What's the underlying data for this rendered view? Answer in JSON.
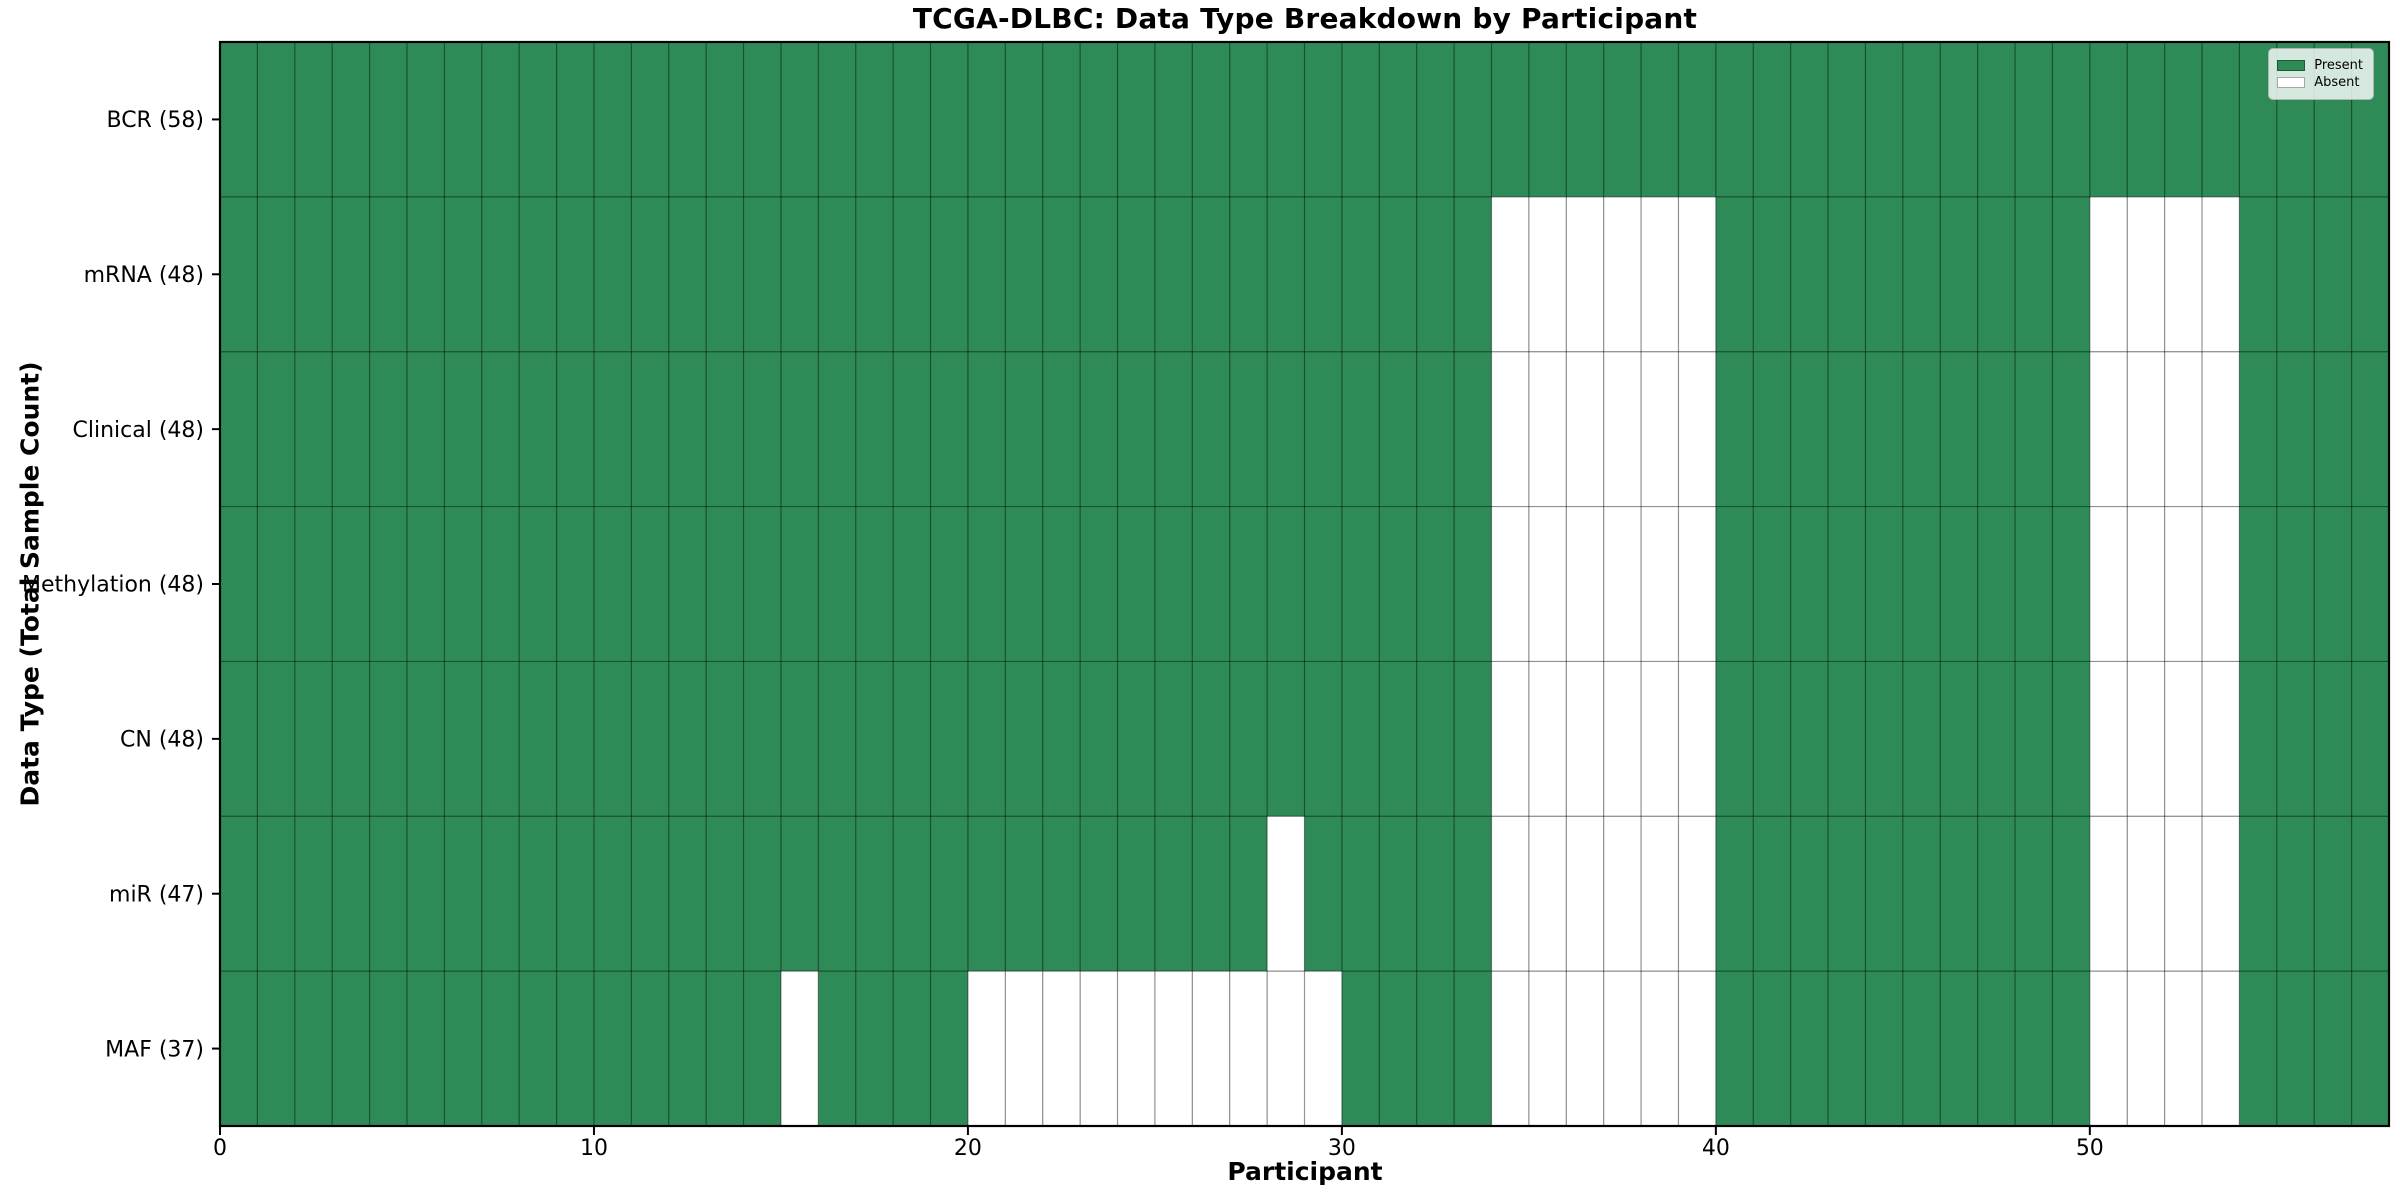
{
  "chart_data": {
    "type": "heatmap",
    "title": "TCGA-DLBC: Data Type Breakdown by Participant",
    "xlabel": "Participant",
    "ylabel": "Data Type (Total Sample Count)",
    "participants": 58,
    "x_range": [
      0,
      58
    ],
    "x_ticks": [
      0,
      10,
      20,
      30,
      40,
      50
    ],
    "grid": true,
    "cell_states": [
      "Present",
      "Absent"
    ],
    "rows": [
      {
        "label": "BCR (58)",
        "data_type": "BCR",
        "present_count": 58,
        "absent_participants": []
      },
      {
        "label": "mRNA (48)",
        "data_type": "mRNA",
        "present_count": 48,
        "absent_participants": [
          34,
          35,
          36,
          37,
          38,
          39,
          50,
          51,
          52,
          53
        ]
      },
      {
        "label": "Clinical (48)",
        "data_type": "Clinical",
        "present_count": 48,
        "absent_participants": [
          34,
          35,
          36,
          37,
          38,
          39,
          50,
          51,
          52,
          53
        ]
      },
      {
        "label": "Methylation (48)",
        "data_type": "Methylation",
        "present_count": 48,
        "absent_participants": [
          34,
          35,
          36,
          37,
          38,
          39,
          50,
          51,
          52,
          53
        ]
      },
      {
        "label": "CN (48)",
        "data_type": "CN",
        "present_count": 48,
        "absent_participants": [
          34,
          35,
          36,
          37,
          38,
          39,
          50,
          51,
          52,
          53
        ]
      },
      {
        "label": "miR (47)",
        "data_type": "miR",
        "present_count": 47,
        "absent_participants": [
          28,
          34,
          35,
          36,
          37,
          38,
          39,
          50,
          51,
          52,
          53
        ]
      },
      {
        "label": "MAF (37)",
        "data_type": "MAF",
        "present_count": 37,
        "absent_participants": [
          15,
          20,
          21,
          22,
          23,
          24,
          25,
          26,
          27,
          28,
          29,
          34,
          35,
          36,
          37,
          38,
          39,
          50,
          51,
          52,
          53
        ]
      }
    ],
    "legend": {
      "position": "upper-right",
      "entries": [
        {
          "label": "Present",
          "color": "#2e8b57"
        },
        {
          "label": "Absent",
          "color": "#ffffff"
        }
      ]
    },
    "colors": {
      "present": "#2e8b57",
      "absent": "#ffffff",
      "grid_line": "rgba(0,0,0,0.42)",
      "border": "#000000",
      "background": "#ffffff"
    }
  }
}
